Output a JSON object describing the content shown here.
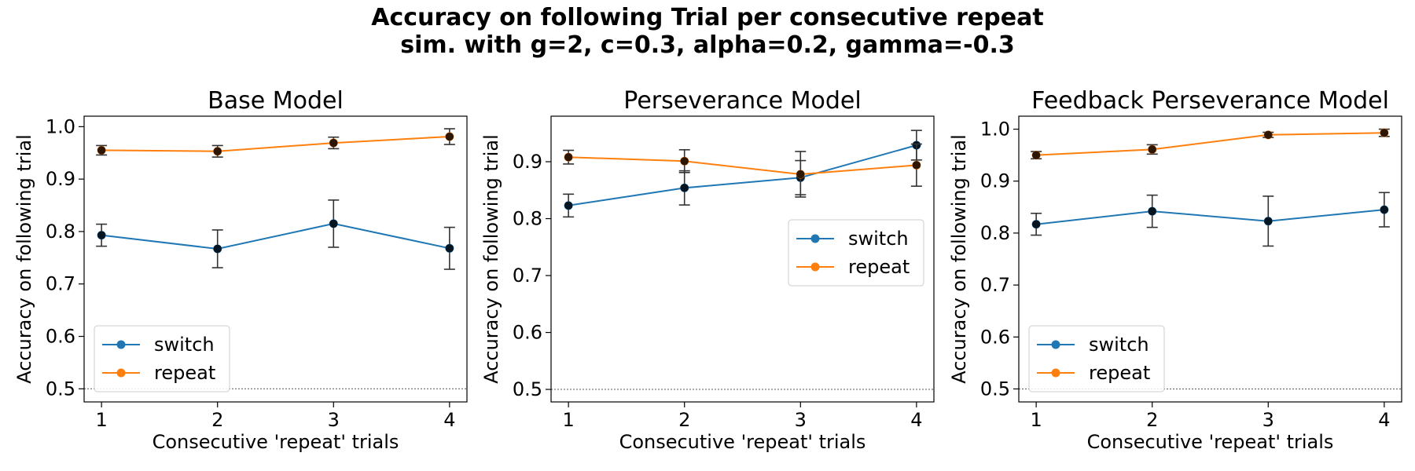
{
  "figure": {
    "title_line1": "Accuracy on following Trial per consecutive repeat",
    "title_line2": "sim. with g=2, c=0.3, alpha=0.2, gamma=-0.3"
  },
  "colors": {
    "switch": "#1f77b4",
    "repeat": "#ff7f0e",
    "marker_overlay": "#000000",
    "errorbar": "#333333",
    "chance_line": "#555555"
  },
  "chart_data": [
    {
      "type": "line",
      "title": "Base Model",
      "xlabel": "Consecutive 'repeat' trials",
      "ylabel": "Accuracy on following trial",
      "x": [
        1,
        2,
        3,
        4
      ],
      "xticks": [
        1,
        2,
        3,
        4
      ],
      "yticks": [
        0.5,
        0.6,
        0.7,
        0.8,
        0.9,
        1.0
      ],
      "ytick_labels": [
        "0.5",
        "0.6",
        "0.7",
        "0.8",
        "0.9",
        "1.0"
      ],
      "xlim": [
        0.85,
        4.15
      ],
      "ylim": [
        0.475,
        1.02
      ],
      "reference_line": 0.5,
      "legend": "lower-left",
      "series": [
        {
          "name": "switch",
          "values": [
            0.793,
            0.767,
            0.815,
            0.768
          ],
          "err": [
            0.021,
            0.036,
            0.045,
            0.04
          ]
        },
        {
          "name": "repeat",
          "values": [
            0.955,
            0.953,
            0.969,
            0.981
          ],
          "err": [
            0.009,
            0.011,
            0.011,
            0.015
          ]
        }
      ]
    },
    {
      "type": "line",
      "title": "Perseverance Model",
      "xlabel": "Consecutive 'repeat' trials",
      "ylabel": "Accuracy on following trial",
      "x": [
        1,
        2,
        3,
        4
      ],
      "xticks": [
        1,
        2,
        3,
        4
      ],
      "yticks": [
        0.5,
        0.6,
        0.7,
        0.8,
        0.9
      ],
      "ytick_labels": [
        "0.5",
        "0.6",
        "0.7",
        "0.8",
        "0.9"
      ],
      "xlim": [
        0.85,
        4.15
      ],
      "ylim": [
        0.478,
        0.98
      ],
      "reference_line": 0.5,
      "legend": "center-right",
      "series": [
        {
          "name": "switch",
          "values": [
            0.823,
            0.854,
            0.872,
            0.929
          ],
          "err": [
            0.02,
            0.03,
            0.03,
            0.026
          ]
        },
        {
          "name": "repeat",
          "values": [
            0.908,
            0.901,
            0.878,
            0.894
          ],
          "err": [
            0.012,
            0.02,
            0.04,
            0.037
          ]
        }
      ]
    },
    {
      "type": "line",
      "title": "Feedback Perseverance Model",
      "xlabel": "Consecutive 'repeat' trials",
      "ylabel": "Accuracy on following trial",
      "x": [
        1,
        2,
        3,
        4
      ],
      "xticks": [
        1,
        2,
        3,
        4
      ],
      "yticks": [
        0.5,
        0.6,
        0.7,
        0.8,
        0.9,
        1.0
      ],
      "ytick_labels": [
        "0.5",
        "0.6",
        "0.7",
        "0.8",
        "0.9",
        "1.0"
      ],
      "xlim": [
        0.85,
        4.15
      ],
      "ylim": [
        0.475,
        1.025
      ],
      "reference_line": 0.5,
      "legend": "lower-left",
      "series": [
        {
          "name": "switch",
          "values": [
            0.817,
            0.842,
            0.823,
            0.845
          ],
          "err": [
            0.021,
            0.031,
            0.048,
            0.033
          ]
        },
        {
          "name": "repeat",
          "values": [
            0.95,
            0.961,
            0.989,
            0.993
          ],
          "err": [
            0.007,
            0.009,
            0.005,
            0.007
          ]
        }
      ]
    }
  ]
}
